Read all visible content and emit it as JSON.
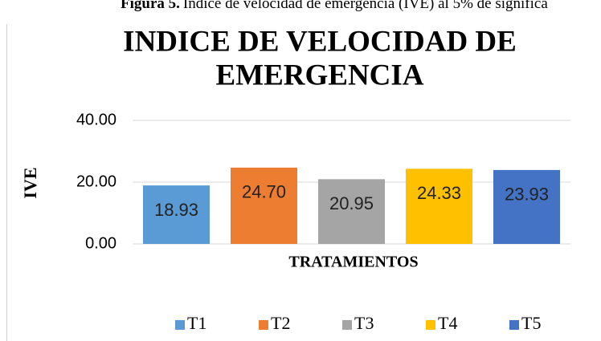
{
  "caption": {
    "label": "Figura 5.",
    "text": "Índice de velocidad de emergencia (IVE) al 5% de significa"
  },
  "chart_data": {
    "type": "bar",
    "title": [
      "INDICE DE VELOCIDAD DE",
      "EMERGENCIA"
    ],
    "y_label": "IVE",
    "x_label": "TRATAMIENTOS",
    "ylim": [
      0,
      40
    ],
    "yticks": [
      {
        "value": 0,
        "label": "0.00"
      },
      {
        "value": 20,
        "label": "20.00"
      },
      {
        "value": 40,
        "label": "40.00"
      }
    ],
    "grid": true,
    "legend": "bottom",
    "series": [
      {
        "name": "T1",
        "color": "#5b9bd5",
        "values": [
          18.93
        ],
        "value_labels": [
          "18.93"
        ]
      },
      {
        "name": "T2",
        "color": "#ed7d31",
        "values": [
          24.7
        ],
        "value_labels": [
          "24.70"
        ]
      },
      {
        "name": "T3",
        "color": "#a5a5a5",
        "values": [
          20.95
        ],
        "value_labels": [
          "20.95"
        ]
      },
      {
        "name": "T4",
        "color": "#ffc000",
        "values": [
          24.33
        ],
        "value_labels": [
          "24.33"
        ]
      },
      {
        "name": "T5",
        "color": "#4472c4",
        "values": [
          23.93
        ],
        "value_labels": [
          "23.93"
        ]
      }
    ]
  }
}
